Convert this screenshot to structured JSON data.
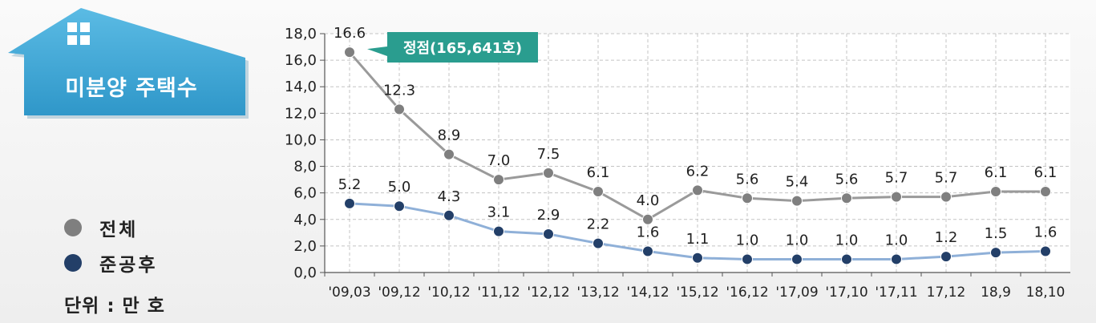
{
  "title_box": {
    "title": "미분양 주택수",
    "color": "#3fa7d6"
  },
  "legend": [
    {
      "label": "전체",
      "color": "#7f7f7f"
    },
    {
      "label": "준공후",
      "color": "#233f68"
    }
  ],
  "unit_label": "단위 : 만 호",
  "peak_callout": {
    "text": "정점(165,641호)",
    "color": "#2a9d8f"
  },
  "chart_data": {
    "type": "line",
    "categories": [
      "'09,03",
      "'09,12",
      "'10,12",
      "'11,12",
      "'12,12",
      "'13,12",
      "'14,12",
      "'15,12",
      "'16,12",
      "'17,09",
      "'17,10",
      "'17,11",
      "17,12",
      "18,9",
      "18,10"
    ],
    "yticks": [
      "0,0",
      "2,0",
      "4,0",
      "6,0",
      "8,0",
      "10,0",
      "12,0",
      "14,0",
      "16,0",
      "18,0"
    ],
    "ylim": [
      0,
      18
    ],
    "grid": true,
    "series": [
      {
        "name": "전체",
        "color": "#9a9a9a",
        "marker_color": "#7f7f7f",
        "values": [
          16.6,
          12.3,
          8.9,
          7.0,
          7.5,
          6.1,
          4.0,
          6.2,
          5.6,
          5.4,
          5.6,
          5.7,
          5.7,
          6.1,
          6.1
        ],
        "labels": [
          "16.6",
          "12.3",
          "8.9",
          "7.0",
          "7.5",
          "6.1",
          "4.0",
          "6.2",
          "5.6",
          "5.4",
          "5.6",
          "5.7",
          "5.7",
          "6.1",
          "6.1"
        ]
      },
      {
        "name": "준공후",
        "color": "#8fb0d8",
        "marker_color": "#233f68",
        "values": [
          5.2,
          5.0,
          4.3,
          3.1,
          2.9,
          2.2,
          1.6,
          1.1,
          1.0,
          1.0,
          1.0,
          1.0,
          1.2,
          1.5,
          1.6
        ],
        "labels": [
          "5.2",
          "5.0",
          "4.3",
          "3.1",
          "2.9",
          "2.2",
          "1.6",
          "1.1",
          "1.0",
          "1.0",
          "1.0",
          "1.0",
          "1.2",
          "1.5",
          "1.6"
        ]
      }
    ]
  }
}
